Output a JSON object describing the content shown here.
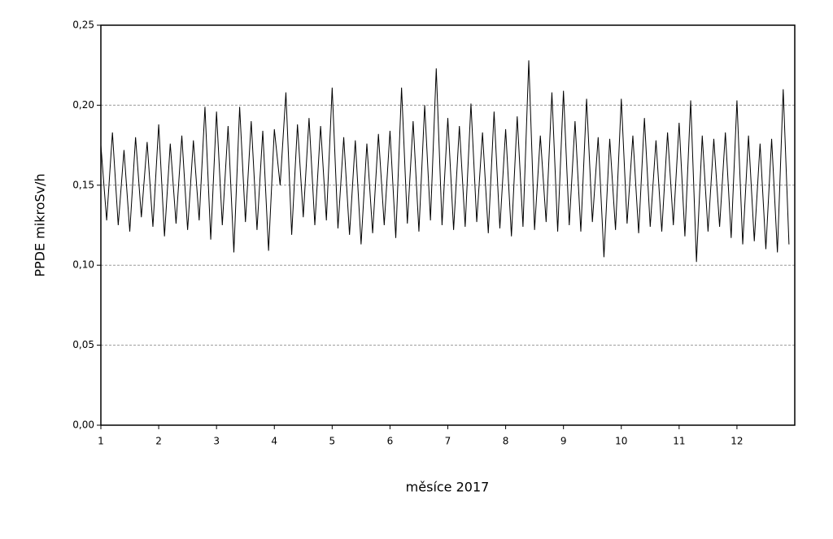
{
  "chart_data": {
    "type": "line",
    "x_label": "měsíce 2017",
    "y_label": "PPDE mikroSv/h",
    "xlim": [
      1,
      13
    ],
    "xticks": [
      1,
      2,
      3,
      4,
      5,
      6,
      7,
      8,
      9,
      10,
      11,
      12
    ],
    "ylim": [
      0,
      0.25
    ],
    "yticks": [
      {
        "value": 0,
        "label": "0,00"
      },
      {
        "value": 0.05,
        "label": "0,05"
      },
      {
        "value": 0.1,
        "label": "0,10"
      },
      {
        "value": 0.15,
        "label": "0,15"
      },
      {
        "value": 0.2,
        "label": "0,20"
      },
      {
        "value": 0.25,
        "label": "0,25"
      }
    ],
    "grid": true,
    "x": [
      1.0,
      1.1,
      1.2,
      1.3,
      1.4,
      1.5,
      1.6,
      1.7,
      1.8,
      1.9,
      2.0,
      2.1,
      2.2,
      2.3,
      2.4,
      2.5,
      2.6,
      2.7,
      2.8,
      2.9,
      3.0,
      3.1,
      3.2,
      3.3,
      3.4,
      3.5,
      3.6,
      3.7,
      3.8,
      3.9,
      4.0,
      4.1,
      4.2,
      4.3,
      4.4,
      4.5,
      4.6,
      4.7,
      4.8,
      4.9,
      5.0,
      5.1,
      5.2,
      5.3,
      5.4,
      5.5,
      5.6,
      5.7,
      5.8,
      5.9,
      6.0,
      6.1,
      6.2,
      6.3,
      6.4,
      6.5,
      6.6,
      6.7,
      6.8,
      6.9,
      7.0,
      7.1,
      7.2,
      7.3,
      7.4,
      7.5,
      7.6,
      7.7,
      7.8,
      7.9,
      8.0,
      8.1,
      8.2,
      8.3,
      8.4,
      8.5,
      8.6,
      8.7,
      8.8,
      8.9,
      9.0,
      9.1,
      9.2,
      9.3,
      9.4,
      9.5,
      9.6,
      9.7,
      9.8,
      9.9,
      10.0,
      10.1,
      10.2,
      10.3,
      10.4,
      10.5,
      10.6,
      10.7,
      10.8,
      10.9,
      11.0,
      11.1,
      11.2,
      11.3,
      11.4,
      11.5,
      11.6,
      11.7,
      11.8,
      11.9,
      12.0,
      12.1,
      12.2,
      12.3,
      12.4,
      12.5,
      12.6,
      12.7,
      12.8,
      12.9
    ],
    "series": [
      {
        "color": "#000000",
        "values": [
          0.175,
          0.128,
          0.183,
          0.125,
          0.172,
          0.121,
          0.18,
          0.13,
          0.177,
          0.124,
          0.188,
          0.118,
          0.176,
          0.126,
          0.181,
          0.122,
          0.178,
          0.128,
          0.199,
          0.116,
          0.196,
          0.125,
          0.187,
          0.108,
          0.199,
          0.127,
          0.19,
          0.122,
          0.184,
          0.109,
          0.185,
          0.15,
          0.208,
          0.119,
          0.188,
          0.13,
          0.192,
          0.125,
          0.187,
          0.128,
          0.211,
          0.123,
          0.18,
          0.119,
          0.178,
          0.113,
          0.176,
          0.12,
          0.182,
          0.125,
          0.184,
          0.117,
          0.211,
          0.126,
          0.19,
          0.121,
          0.2,
          0.128,
          0.223,
          0.125,
          0.192,
          0.122,
          0.187,
          0.124,
          0.201,
          0.127,
          0.183,
          0.12,
          0.196,
          0.123,
          0.185,
          0.118,
          0.193,
          0.124,
          0.228,
          0.122,
          0.181,
          0.127,
          0.208,
          0.121,
          0.209,
          0.125,
          0.19,
          0.121,
          0.204,
          0.127,
          0.18,
          0.105,
          0.179,
          0.122,
          0.204,
          0.126,
          0.181,
          0.12,
          0.192,
          0.124,
          0.178,
          0.121,
          0.183,
          0.125,
          0.189,
          0.118,
          0.203,
          0.102,
          0.181,
          0.121,
          0.179,
          0.124,
          0.183,
          0.117,
          0.203,
          0.113,
          0.181,
          0.115,
          0.176,
          0.11,
          0.179,
          0.108,
          0.21,
          0.113
        ]
      }
    ]
  }
}
